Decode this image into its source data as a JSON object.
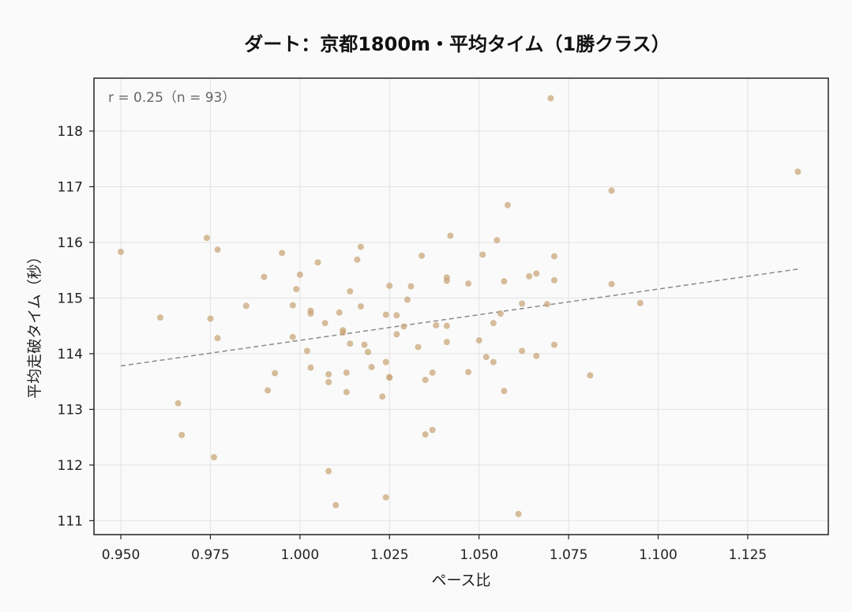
{
  "chart_data": {
    "type": "scatter",
    "title": "ダート：京都1800m・平均タイム（1勝クラス）",
    "xlabel": "ペース比",
    "ylabel": "平均走破タイム（秒）",
    "annotation": "r = 0.25（n = 93）",
    "xlim": [
      0.9425,
      1.1475
    ],
    "ylim": [
      110.75,
      118.95
    ],
    "xticks": [
      0.95,
      0.975,
      1.0,
      1.025,
      1.05,
      1.075,
      1.1,
      1.125
    ],
    "xtick_labels": [
      "0.950",
      "0.975",
      "1.000",
      "1.025",
      "1.050",
      "1.075",
      "1.100",
      "1.125"
    ],
    "yticks": [
      111,
      112,
      113,
      114,
      115,
      116,
      117,
      118
    ],
    "ytick_labels": [
      "111",
      "112",
      "113",
      "114",
      "115",
      "116",
      "117",
      "118"
    ],
    "grid": true,
    "colors": {
      "points": "#c9a77a",
      "trend": "#8a8a8a",
      "frame": "#222222",
      "grid": "#e3e3e3"
    },
    "trendline": {
      "x": [
        0.95,
        1.139
      ],
      "y": [
        113.78,
        115.52
      ]
    },
    "points": [
      {
        "x": 0.95,
        "y": 115.83
      },
      {
        "x": 0.961,
        "y": 114.65
      },
      {
        "x": 0.966,
        "y": 113.11
      },
      {
        "x": 0.967,
        "y": 112.54
      },
      {
        "x": 0.974,
        "y": 116.08
      },
      {
        "x": 0.975,
        "y": 114.63
      },
      {
        "x": 0.976,
        "y": 112.14
      },
      {
        "x": 0.977,
        "y": 114.28
      },
      {
        "x": 0.977,
        "y": 115.87
      },
      {
        "x": 0.985,
        "y": 114.86
      },
      {
        "x": 0.99,
        "y": 115.38
      },
      {
        "x": 0.991,
        "y": 113.34
      },
      {
        "x": 0.993,
        "y": 113.65
      },
      {
        "x": 0.995,
        "y": 115.81
      },
      {
        "x": 0.998,
        "y": 114.87
      },
      {
        "x": 0.998,
        "y": 114.3
      },
      {
        "x": 0.999,
        "y": 115.16
      },
      {
        "x": 1.0,
        "y": 115.42
      },
      {
        "x": 1.002,
        "y": 114.05
      },
      {
        "x": 1.003,
        "y": 114.77
      },
      {
        "x": 1.003,
        "y": 113.75
      },
      {
        "x": 1.003,
        "y": 114.72
      },
      {
        "x": 1.005,
        "y": 115.64
      },
      {
        "x": 1.007,
        "y": 114.55
      },
      {
        "x": 1.008,
        "y": 113.63
      },
      {
        "x": 1.008,
        "y": 113.49
      },
      {
        "x": 1.008,
        "y": 111.89
      },
      {
        "x": 1.01,
        "y": 111.28
      },
      {
        "x": 1.011,
        "y": 114.74
      },
      {
        "x": 1.012,
        "y": 114.42
      },
      {
        "x": 1.012,
        "y": 114.38
      },
      {
        "x": 1.013,
        "y": 113.31
      },
      {
        "x": 1.013,
        "y": 113.66
      },
      {
        "x": 1.014,
        "y": 115.12
      },
      {
        "x": 1.014,
        "y": 114.18
      },
      {
        "x": 1.016,
        "y": 115.69
      },
      {
        "x": 1.017,
        "y": 114.85
      },
      {
        "x": 1.017,
        "y": 115.92
      },
      {
        "x": 1.018,
        "y": 114.16
      },
      {
        "x": 1.019,
        "y": 114.03
      },
      {
        "x": 1.02,
        "y": 113.76
      },
      {
        "x": 1.023,
        "y": 113.23
      },
      {
        "x": 1.024,
        "y": 111.42
      },
      {
        "x": 1.024,
        "y": 113.85
      },
      {
        "x": 1.024,
        "y": 114.7
      },
      {
        "x": 1.025,
        "y": 113.57
      },
      {
        "x": 1.025,
        "y": 113.58
      },
      {
        "x": 1.025,
        "y": 115.22
      },
      {
        "x": 1.027,
        "y": 114.35
      },
      {
        "x": 1.027,
        "y": 114.69
      },
      {
        "x": 1.029,
        "y": 114.49
      },
      {
        "x": 1.03,
        "y": 114.97
      },
      {
        "x": 1.031,
        "y": 115.21
      },
      {
        "x": 1.033,
        "y": 114.12
      },
      {
        "x": 1.034,
        "y": 115.76
      },
      {
        "x": 1.035,
        "y": 113.53
      },
      {
        "x": 1.035,
        "y": 112.55
      },
      {
        "x": 1.037,
        "y": 113.66
      },
      {
        "x": 1.037,
        "y": 112.63
      },
      {
        "x": 1.038,
        "y": 114.51
      },
      {
        "x": 1.041,
        "y": 114.21
      },
      {
        "x": 1.041,
        "y": 114.5
      },
      {
        "x": 1.041,
        "y": 115.31
      },
      {
        "x": 1.041,
        "y": 115.37
      },
      {
        "x": 1.042,
        "y": 116.12
      },
      {
        "x": 1.047,
        "y": 113.67
      },
      {
        "x": 1.047,
        "y": 115.26
      },
      {
        "x": 1.05,
        "y": 114.24
      },
      {
        "x": 1.051,
        "y": 115.78
      },
      {
        "x": 1.052,
        "y": 113.94
      },
      {
        "x": 1.054,
        "y": 113.85
      },
      {
        "x": 1.054,
        "y": 114.55
      },
      {
        "x": 1.055,
        "y": 116.04
      },
      {
        "x": 1.056,
        "y": 114.72
      },
      {
        "x": 1.057,
        "y": 115.3
      },
      {
        "x": 1.057,
        "y": 113.33
      },
      {
        "x": 1.058,
        "y": 116.67
      },
      {
        "x": 1.061,
        "y": 111.12
      },
      {
        "x": 1.062,
        "y": 114.05
      },
      {
        "x": 1.062,
        "y": 114.9
      },
      {
        "x": 1.064,
        "y": 115.39
      },
      {
        "x": 1.066,
        "y": 115.44
      },
      {
        "x": 1.066,
        "y": 113.96
      },
      {
        "x": 1.069,
        "y": 114.89
      },
      {
        "x": 1.07,
        "y": 118.59
      },
      {
        "x": 1.071,
        "y": 115.75
      },
      {
        "x": 1.071,
        "y": 114.16
      },
      {
        "x": 1.071,
        "y": 115.32
      },
      {
        "x": 1.081,
        "y": 113.61
      },
      {
        "x": 1.087,
        "y": 116.93
      },
      {
        "x": 1.087,
        "y": 115.25
      },
      {
        "x": 1.095,
        "y": 114.91
      },
      {
        "x": 1.139,
        "y": 117.27
      }
    ]
  }
}
